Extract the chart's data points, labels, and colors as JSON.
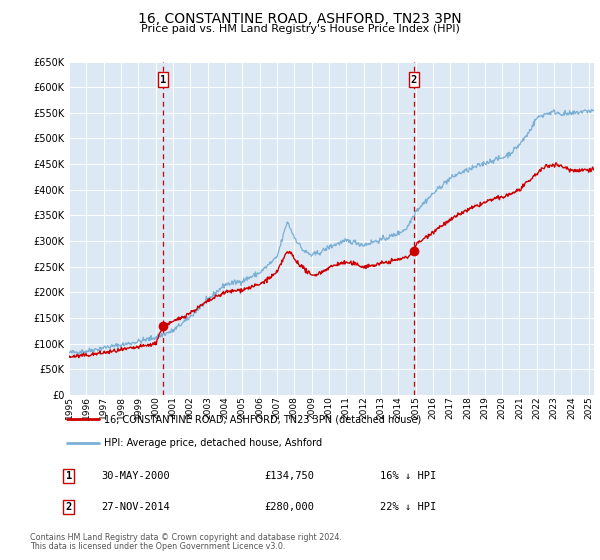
{
  "title": "16, CONSTANTINE ROAD, ASHFORD, TN23 3PN",
  "subtitle": "Price paid vs. HM Land Registry's House Price Index (HPI)",
  "background_color": "#ffffff",
  "plot_bg_color": "#dce9f5",
  "grid_color": "#ffffff",
  "ylim": [
    0,
    650000
  ],
  "yticks": [
    0,
    50000,
    100000,
    150000,
    200000,
    250000,
    300000,
    350000,
    400000,
    450000,
    500000,
    550000,
    600000,
    650000
  ],
  "xlim_start": 1995.0,
  "xlim_end": 2025.3,
  "xtick_years": [
    1995,
    1996,
    1997,
    1998,
    1999,
    2000,
    2001,
    2002,
    2003,
    2004,
    2005,
    2006,
    2007,
    2008,
    2009,
    2010,
    2011,
    2012,
    2013,
    2014,
    2015,
    2016,
    2017,
    2018,
    2019,
    2020,
    2021,
    2022,
    2023,
    2024,
    2025
  ],
  "sale1_x": 2000.41,
  "sale1_y": 134750,
  "sale1_label": "1",
  "sale1_date": "30-MAY-2000",
  "sale1_price": "£134,750",
  "sale1_pct": "16% ↓ HPI",
  "sale2_x": 2014.91,
  "sale2_y": 280000,
  "sale2_label": "2",
  "sale2_date": "27-NOV-2014",
  "sale2_price": "£280,000",
  "sale2_pct": "22% ↓ HPI",
  "red_line_color": "#cc0000",
  "blue_line_color": "#7bafd4",
  "vline_color": "#cc0000",
  "marker_color": "#cc0000",
  "legend_label_red": "16, CONSTANTINE ROAD, ASHFORD, TN23 3PN (detached house)",
  "legend_label_blue": "HPI: Average price, detached house, Ashford",
  "footer1": "Contains HM Land Registry data © Crown copyright and database right 2024.",
  "footer2": "This data is licensed under the Open Government Licence v3.0."
}
